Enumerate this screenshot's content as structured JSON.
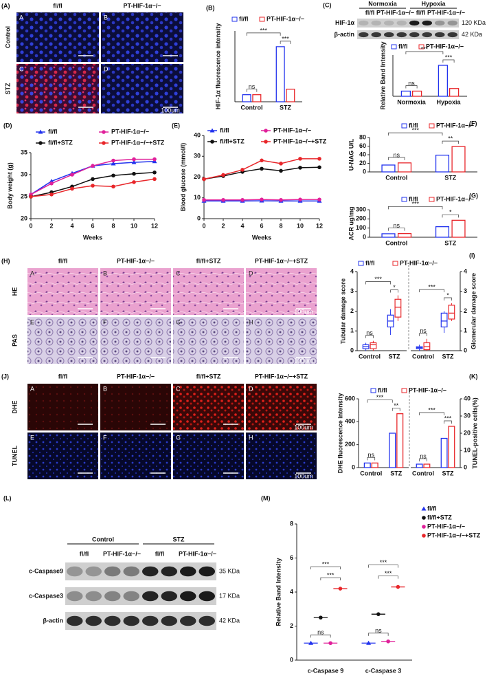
{
  "figure": {
    "a": {
      "label": "(A)",
      "cols": [
        "fl/fl",
        "PT-HIF-1α−/−"
      ],
      "rows": [
        "Control",
        "STZ"
      ],
      "tiles": [
        "A",
        "B",
        "C",
        "D"
      ],
      "scale": "100um"
    },
    "c_blot": {
      "label": "(C)",
      "groups": [
        "Normoxia",
        "Hypoxia"
      ],
      "lanes": [
        "fl/fl",
        "PT-HIF-1α−/−",
        "fl/fl",
        "PT-HIF-1α−/−"
      ],
      "bands": [
        "HIF-1α",
        "β-actin"
      ],
      "sizes": [
        "120 KDa",
        "42 KDa"
      ]
    },
    "h": {
      "label": "(H)",
      "cols": [
        "fl/fl",
        "PT-HIF-1α−/−",
        "fl/fl+STZ",
        "PT-HIF-1α−/−+STZ"
      ],
      "rows": [
        "HE",
        "PAS"
      ],
      "tiles": [
        "A",
        "B",
        "C",
        "D",
        "E",
        "F",
        "G",
        "H"
      ],
      "scale": "100um"
    },
    "j": {
      "label": "(J)",
      "cols": [
        "fl/fl",
        "PT-HIF-1α−/−",
        "fl/fl+STZ",
        "PT-HIF-1α−/−+STZ"
      ],
      "rows": [
        "DHE",
        "TUNEL"
      ],
      "tiles": [
        "A",
        "B",
        "C",
        "D",
        "E",
        "F",
        "G",
        "H"
      ],
      "scale": "100um"
    },
    "l": {
      "label": "(L)",
      "groups": [
        "Control",
        "STZ"
      ],
      "lanes": [
        "fl/fl",
        "PT-HIF-1α−/−",
        "fl/fl",
        "PT-HIF-1α−/−"
      ],
      "bands": [
        "c-Caspase9",
        "c-Caspase3",
        "β-actin"
      ],
      "sizes": [
        "35 KDa",
        "17 KDa",
        "42 KDa"
      ]
    }
  },
  "chart_data": [
    {
      "type": "bar",
      "panel": "(B)",
      "ylabel": "HIF-1α fluorescence intensity",
      "categories": [
        "Control",
        "STZ"
      ],
      "ylim": [
        0,
        450
      ],
      "series": [
        {
          "name": "fl/fl",
          "color": "#2233ee",
          "values": [
            45,
            350
          ]
        },
        {
          "name": "PT-HIF-1α−/−",
          "color": "#e8262a",
          "values": [
            45,
            80
          ]
        }
      ],
      "annotations": [
        "ns",
        "***",
        "***"
      ]
    },
    {
      "type": "bar",
      "ylabel": "Relative Band Intensity",
      "categories": [
        "Normoxia",
        "Hypoxia"
      ],
      "ylim": [
        0,
        8
      ],
      "series": [
        {
          "name": "fl/fl",
          "color": "#2233ee",
          "values": [
            1,
            6
          ]
        },
        {
          "name": "PT-HIF-1α−/−",
          "color": "#e8262a",
          "values": [
            1,
            1.5
          ]
        }
      ],
      "annotations": [
        "ns",
        "***",
        "***"
      ]
    },
    {
      "type": "line",
      "panel": "(D)",
      "xlabel": "Weeks",
      "ylabel": "Body weight (g)",
      "x": [
        0,
        2,
        4,
        6,
        8,
        10,
        12
      ],
      "xlim": [
        0,
        12
      ],
      "xticks": [
        0,
        2,
        4,
        6,
        8,
        10,
        12
      ],
      "ylim": [
        20,
        35
      ],
      "yticks": [
        20,
        25,
        30,
        35
      ],
      "series": [
        {
          "name": "fl/fl",
          "color": "#2233ee",
          "values": [
            25.5,
            28.5,
            30.3,
            32,
            32.5,
            32.8,
            33
          ]
        },
        {
          "name": "PT-HIF-1α−/−",
          "color": "#e0209a",
          "values": [
            25.5,
            28,
            30,
            32,
            33.2,
            33.5,
            33.5
          ]
        },
        {
          "name": "fl/fl+STZ",
          "color": "#111111",
          "values": [
            25,
            26,
            27.3,
            29,
            29.8,
            30.2,
            30.5
          ]
        },
        {
          "name": "PT-HIF-1α−/−+STZ",
          "color": "#e8262a",
          "values": [
            25,
            25.5,
            26.8,
            27.5,
            27.3,
            28.3,
            29
          ]
        }
      ]
    },
    {
      "type": "line",
      "panel": "(E)",
      "xlabel": "Weeks",
      "ylabel": "Blood glucose (mmol/l)",
      "x": [
        0,
        2,
        4,
        6,
        8,
        10,
        12
      ],
      "xlim": [
        0,
        12
      ],
      "xticks": [
        0,
        2,
        4,
        6,
        8,
        10,
        12
      ],
      "ylim": [
        0,
        40
      ],
      "yticks": [
        0,
        10,
        20,
        30,
        40
      ],
      "series": [
        {
          "name": "fl/fl",
          "color": "#2233ee",
          "values": [
            8.5,
            8.5,
            8.5,
            8.6,
            8.5,
            8.5,
            8.5
          ]
        },
        {
          "name": "PT-HIF-1α−/−",
          "color": "#e0209a",
          "values": [
            9,
            9,
            9,
            9.2,
            9,
            9.2,
            9.2
          ]
        },
        {
          "name": "fl/fl+STZ",
          "color": "#111111",
          "values": [
            19,
            20.5,
            22.5,
            24,
            23,
            24.5,
            24.7
          ]
        },
        {
          "name": "PT-HIF-1α−/−+STZ",
          "color": "#e8262a",
          "values": [
            19,
            21,
            23.5,
            28,
            26.5,
            28.8,
            28.8
          ]
        }
      ]
    },
    {
      "type": "bar",
      "panel": "(F)",
      "ylabel": "U-NAG U/L",
      "categories": [
        "Control",
        "STZ"
      ],
      "ylim": [
        0,
        80
      ],
      "yticks": [
        0,
        20,
        40,
        60,
        80
      ],
      "series": [
        {
          "name": "fl/fl",
          "color": "#2233ee",
          "values": [
            16,
            39
          ]
        },
        {
          "name": "PT-HIF-1α−/−",
          "color": "#e8262a",
          "values": [
            21,
            59
          ]
        }
      ],
      "annotations": [
        "ns",
        "***",
        "**"
      ]
    },
    {
      "type": "bar",
      "panel": "(G)",
      "ylabel": "ACR ug/mg",
      "categories": [
        "Control",
        "STZ"
      ],
      "ylim": [
        0,
        300
      ],
      "yticks": [
        0,
        100,
        200,
        300
      ],
      "series": [
        {
          "name": "fl/fl",
          "color": "#2233ee",
          "values": [
            38,
            115
          ]
        },
        {
          "name": "PT-HIF-1α−/−",
          "color": "#e8262a",
          "values": [
            40,
            185
          ]
        }
      ],
      "annotations": [
        "ns",
        "***",
        "*"
      ]
    },
    {
      "type": "box",
      "panel": "(I)",
      "ylabel": "Tubular damage score",
      "categories": [
        "Control",
        "STZ"
      ],
      "ylim": [
        0,
        4
      ],
      "yticks": [
        0,
        1,
        2,
        3,
        4
      ],
      "series": [
        {
          "name": "fl/fl",
          "color": "#2233ee",
          "min": [
            0,
            0.8
          ],
          "q1": [
            0.1,
            1.2
          ],
          "median": [
            0.2,
            1.5
          ],
          "q3": [
            0.3,
            1.8
          ],
          "max": [
            0.4,
            2.1
          ]
        },
        {
          "name": "PT-HIF-1α−/−",
          "color": "#e8262a",
          "min": [
            0,
            1.5
          ],
          "q1": [
            0.1,
            1.7
          ],
          "median": [
            0.3,
            2.2
          ],
          "q3": [
            0.4,
            2.6
          ],
          "max": [
            0.5,
            2.8
          ]
        }
      ],
      "annotations": [
        "ns",
        "***",
        "*"
      ]
    },
    {
      "type": "box",
      "ylabel": "Glomerular damage score",
      "categories": [
        "Control",
        "STZ"
      ],
      "ylim": [
        0,
        4
      ],
      "yticks": [
        0,
        1,
        2,
        3,
        4
      ],
      "series": [
        {
          "color": "#2233ee",
          "min": [
            0,
            0.9
          ],
          "q1": [
            0.1,
            1.2
          ],
          "median": [
            0.15,
            1.5
          ],
          "q3": [
            0.2,
            1.9
          ],
          "max": [
            0.3,
            2.0
          ]
        },
        {
          "color": "#e8262a",
          "min": [
            0,
            1.5
          ],
          "q1": [
            0.05,
            1.6
          ],
          "median": [
            0.2,
            1.9
          ],
          "q3": [
            0.4,
            2.3
          ],
          "max": [
            0.6,
            2.4
          ]
        }
      ],
      "annotations": [
        "ns",
        "***",
        "*"
      ]
    },
    {
      "type": "bar",
      "panel": "(K)",
      "ylabel": "DHE fluorescence intensity",
      "categories": [
        "Control",
        "STZ"
      ],
      "ylim": [
        0,
        600
      ],
      "yticks": [
        0,
        200,
        400,
        600
      ],
      "series": [
        {
          "name": "fl/fl",
          "color": "#2233ee",
          "values": [
            40,
            300
          ]
        },
        {
          "name": "PT-HIF-1α−/−",
          "color": "#e8262a",
          "values": [
            40,
            470
          ]
        }
      ],
      "annotations": [
        "ns",
        "***",
        "**"
      ]
    },
    {
      "type": "bar",
      "ylabel": "TUNEL-positive cells(%)",
      "categories": [
        "Control",
        "STZ"
      ],
      "ylim": [
        0,
        40
      ],
      "yticks": [
        0,
        10,
        20,
        30,
        40
      ],
      "series": [
        {
          "color": "#2233ee",
          "values": [
            2,
            17
          ]
        },
        {
          "color": "#e8262a",
          "values": [
            2,
            24
          ]
        }
      ],
      "annotations": [
        "ns",
        "***",
        "***"
      ]
    },
    {
      "type": "dot",
      "panel": "(M)",
      "ylabel": "Relative Band Intensity",
      "categories": [
        "c-Caspase 9",
        "c-Caspase 3"
      ],
      "ylim": [
        0,
        8
      ],
      "yticks": [
        0,
        2,
        4,
        6,
        8
      ],
      "series": [
        {
          "name": "fl/fl",
          "color": "#2233ee",
          "values": [
            1,
            1
          ]
        },
        {
          "name": "fl/fl+STZ",
          "color": "#111111",
          "values": [
            2.5,
            2.7
          ]
        },
        {
          "name": "PT-HIF-1α−/−",
          "color": "#e0209a",
          "values": [
            1,
            1.1
          ]
        },
        {
          "name": "PT-HIF-1α−/−+STZ",
          "color": "#e8262a",
          "values": [
            4.2,
            4.3
          ]
        }
      ],
      "annotations": [
        "ns",
        "***",
        "***",
        "ns",
        "***",
        "***"
      ]
    }
  ]
}
